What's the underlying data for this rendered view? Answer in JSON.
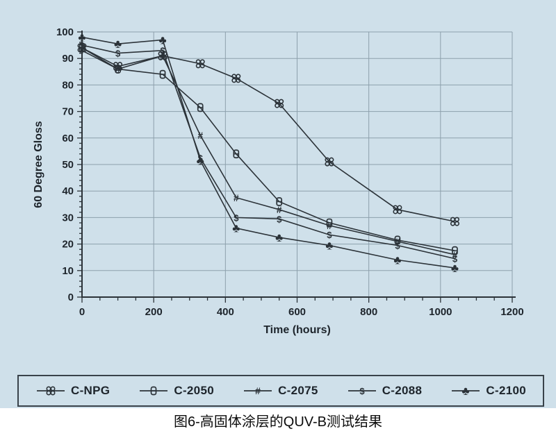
{
  "page": {
    "caption": "图6-高固体涂层的QUV-B测试结果",
    "background_color": "#cfe0ea",
    "caption_background": "#ffffff"
  },
  "chart_data": {
    "type": "line",
    "title": "",
    "xlabel": "Time (hours)",
    "ylabel": "60 Degree Gloss",
    "xlim": [
      0,
      1200
    ],
    "xstep": 200,
    "x_minor_step": 50,
    "ylim": [
      0,
      100
    ],
    "ystep": 10,
    "y_minor_step": 2,
    "grid": true,
    "legend_position": "bottom",
    "line_color": "#2b3238",
    "grid_color": "#8da0ac",
    "text_color": "#1d242b",
    "x": [
      0,
      100,
      225,
      330,
      430,
      550,
      690,
      880,
      1040
    ],
    "series": [
      {
        "name": "C-NPG",
        "marker": "quad-circles",
        "values": [
          94,
          87,
          91,
          88,
          82.5,
          73,
          51,
          33,
          28.5
        ]
      },
      {
        "name": "C-2050",
        "marker": "theta-box",
        "values": [
          94,
          86,
          84,
          71.5,
          54,
          36,
          28,
          21.5,
          17.5
        ]
      },
      {
        "name": "C-2075",
        "marker": "hash",
        "values": [
          93,
          86,
          91,
          61,
          37.5,
          33,
          27,
          21,
          16
        ]
      },
      {
        "name": "C-2088",
        "marker": "dollar",
        "values": [
          95,
          92,
          93,
          52.5,
          30,
          29.5,
          23.5,
          19.5,
          14.5
        ]
      },
      {
        "name": "C-2100",
        "marker": "club",
        "values": [
          98,
          95.5,
          97,
          51.5,
          26,
          22.5,
          19.5,
          14,
          11
        ]
      }
    ]
  }
}
